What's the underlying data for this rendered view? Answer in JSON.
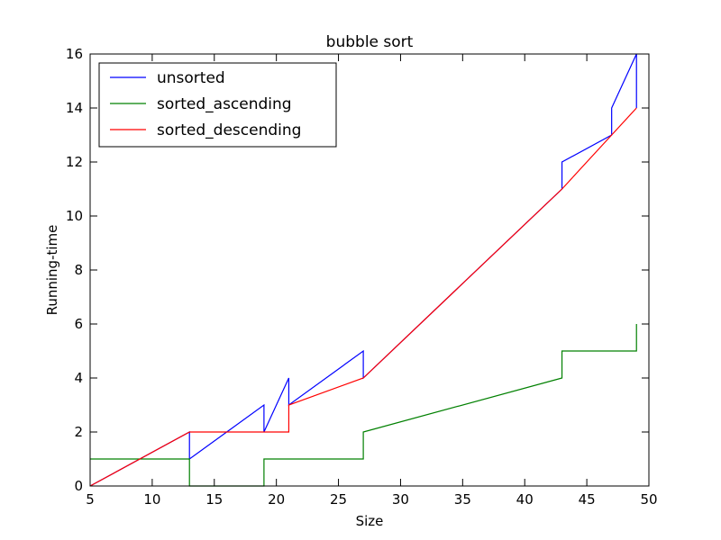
{
  "chart_data": {
    "type": "line",
    "title": "bubble sort",
    "xlabel": "Size",
    "ylabel": "Running-time",
    "xlim": [
      5,
      50
    ],
    "ylim": [
      0,
      16
    ],
    "xticks": [
      5,
      10,
      15,
      20,
      25,
      30,
      35,
      40,
      45,
      50
    ],
    "yticks": [
      0,
      2,
      4,
      6,
      8,
      10,
      12,
      14,
      16
    ],
    "grid": false,
    "legend_position": "top-left",
    "series": [
      {
        "name": "unsorted",
        "color": "#0000ff",
        "points": [
          [
            5,
            0
          ],
          [
            13,
            2
          ],
          [
            13,
            1
          ],
          [
            19,
            3
          ],
          [
            19,
            2
          ],
          [
            21,
            4
          ],
          [
            21,
            3
          ],
          [
            27,
            5
          ],
          [
            27,
            4
          ],
          [
            43,
            11
          ],
          [
            43,
            12
          ],
          [
            47,
            13
          ],
          [
            47,
            14
          ],
          [
            49,
            16
          ],
          [
            49,
            14
          ]
        ]
      },
      {
        "name": "sorted_ascending",
        "color": "#008000",
        "points": [
          [
            5,
            1
          ],
          [
            13,
            1
          ],
          [
            13,
            0
          ],
          [
            19,
            0
          ],
          [
            19,
            1
          ],
          [
            27,
            1
          ],
          [
            27,
            2
          ],
          [
            43,
            4
          ],
          [
            43,
            5
          ],
          [
            49,
            5
          ],
          [
            49,
            6
          ]
        ]
      },
      {
        "name": "sorted_descending",
        "color": "#ff0000",
        "points": [
          [
            5,
            0
          ],
          [
            13,
            2
          ],
          [
            21,
            2
          ],
          [
            21,
            3
          ],
          [
            27,
            4
          ],
          [
            43,
            11
          ],
          [
            47,
            13
          ],
          [
            49,
            14
          ]
        ]
      }
    ]
  }
}
